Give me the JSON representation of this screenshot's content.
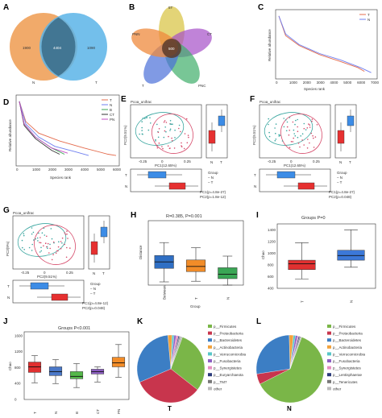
{
  "panels": {
    "A": {
      "label": "A",
      "left_value": "1900",
      "overlap_value": "4404",
      "right_value": "1090",
      "left_name": "N",
      "right_name": "T",
      "colors": [
        "#f0a15a",
        "#5ab4e8"
      ]
    },
    "B": {
      "label": "B",
      "center_value": "500",
      "petals": [
        "5T",
        "CT",
        "PNC",
        "T",
        "PNN"
      ]
    },
    "C": {
      "label": "C",
      "xlabel": "Species rank",
      "ylabel": "Relative abundance",
      "legend": [
        "T",
        "N"
      ]
    },
    "D": {
      "label": "D",
      "xlabel": "Species rank",
      "ylabel": "Relative abundance",
      "legend": [
        "T",
        "N",
        "B",
        "CT",
        "PN"
      ]
    },
    "E": {
      "label": "E",
      "title": "Pcoa_unifrac",
      "xlabel": "PC1(12.65%)",
      "ylabel": "PC2(9.51%)",
      "legend_title": "Group",
      "legend": [
        "N",
        "T"
      ],
      "stat1": "PC1(p=4.8e-27)",
      "stat2": "PC2(p=1.8e-12)",
      "box_labels": [
        "T",
        "N"
      ]
    },
    "F": {
      "label": "F",
      "title": "Pcoa_unifrac",
      "xlabel": "PC1(12.65%)",
      "ylabel": "PC2(9.51%)",
      "legend_title": "Group",
      "legend": [
        "N",
        "T"
      ],
      "stat1": "PC1(p=4.8e-27)",
      "stat2": "PC2(p=0.048)",
      "box_labels": [
        "T",
        "N"
      ]
    },
    "G": {
      "label": "G",
      "title": "Pcoa_unifrac",
      "xlabel": "PC2(9.51%)",
      "ylabel": "PC3(9%)",
      "legend_title": "Group",
      "legend": [
        "N",
        "T"
      ],
      "stat1": "PC1(p=4.8e-12)",
      "stat2": "PC2(p=0.048)",
      "box_labels": [
        "T",
        "N"
      ]
    },
    "H": {
      "label": "H",
      "title": "R=0.385, P=0.001",
      "xlabel": "Group",
      "ylabel": "Distance",
      "groups": [
        "Between",
        "T",
        "N"
      ]
    },
    "I": {
      "label": "I",
      "title": "Groups P=0",
      "ylabel": "Chao",
      "groups": [
        "T",
        "N"
      ]
    },
    "J": {
      "label": "J",
      "title": "Groups P<0.001",
      "ylabel": "Chao",
      "groups": [
        "T",
        "N",
        "B",
        "CT",
        "PN"
      ]
    },
    "K": {
      "label": "K",
      "group": "T",
      "legend": [
        "p__Firmicutes",
        "p__Proteobacteria",
        "p__Bacteroidetes",
        "p__Actinobacteria",
        "p__Verrucomicrobia",
        "p__Fusobacteria",
        "p__Synergistetes",
        "p__Euryarchaeota",
        "p__TM7",
        "other"
      ]
    },
    "L": {
      "label": "L",
      "group": "N",
      "legend": [
        "p__Firmicutes",
        "p__Proteobacteria",
        "p__Bacteroidetes",
        "p__Actinobacteria",
        "p__Verrucomicrobia",
        "p__Fusobacteria",
        "p__Synergistetes",
        "p__Lentisphaerae",
        "p__Tenericutes",
        "other"
      ]
    }
  },
  "chart_data": [
    {
      "type": "bar",
      "panel": "A",
      "categories": [
        "N only",
        "Shared",
        "T only"
      ],
      "values": [
        1900,
        4404,
        1090
      ]
    },
    {
      "type": "line",
      "panel": "C",
      "xlabel": "Species rank",
      "ylabel": "Relative abundance",
      "xlim": [
        0,
        7000
      ],
      "x_ticks": [
        0,
        1000,
        2000,
        3000,
        4000,
        5000,
        6000,
        7000
      ],
      "y_scale": "log",
      "series": [
        {
          "name": "T",
          "color": "#e46c4e",
          "x": [
            0,
            500,
            1500,
            3000,
            4500,
            5800,
            6300
          ],
          "y": [
            0.1,
            0.003,
            0.0005,
            0.0001,
            3e-05,
            1e-05,
            5e-06
          ]
        },
        {
          "name": "N",
          "color": "#6f7ff0",
          "x": [
            0,
            500,
            1500,
            3000,
            4500,
            6000,
            6800
          ],
          "y": [
            0.1,
            0.004,
            0.0006,
            0.00012,
            4e-05,
            1e-05,
            4e-06
          ]
        }
      ]
    },
    {
      "type": "line",
      "panel": "D",
      "xlabel": "Species rank",
      "ylabel": "Relative abundance",
      "xlim": [
        0,
        6000
      ],
      "x_ticks": [
        0,
        1000,
        2000,
        3000,
        4000,
        5000,
        6000
      ],
      "y_scale": "log",
      "series": [
        {
          "name": "T",
          "color": "#e46c4e",
          "x": [
            0,
            400,
            1200,
            2500,
            4000,
            5500,
            6000
          ],
          "y": [
            0.1,
            0.003,
            0.0004,
            0.0001,
            3e-05,
            1e-05,
            8e-06
          ]
        },
        {
          "name": "N",
          "color": "#6f7ff0",
          "x": [
            0,
            400,
            1200,
            2200,
            3500,
            4300
          ],
          "y": [
            0.1,
            0.002,
            0.0002,
            4e-05,
            1.5e-05,
            8e-06
          ]
        },
        {
          "name": "B",
          "color": "#3aa655",
          "x": [
            0,
            300,
            1000,
            2000,
            2800
          ],
          "y": [
            0.1,
            0.002,
            0.0002,
            3e-05,
            1e-05
          ]
        },
        {
          "name": "CT",
          "color": "#333333",
          "x": [
            0,
            300,
            1000,
            2000,
            2500
          ],
          "y": [
            0.1,
            0.0015,
            0.00015,
            2e-05,
            1e-05
          ]
        },
        {
          "name": "PN",
          "color": "#c44ec4",
          "x": [
            0,
            300,
            1000,
            2000,
            3000
          ],
          "y": [
            0.1,
            0.002,
            0.0002,
            3e-05,
            1.2e-05
          ]
        }
      ]
    },
    {
      "type": "scatter",
      "panel": "E",
      "xlabel": "PC1(12.65%)",
      "ylabel": "PC2(9.51%)",
      "xlim": [
        -0.3,
        0.4
      ],
      "ylim": [
        -0.3,
        0.3
      ],
      "x_ticks": [
        -0.25,
        0,
        0.25
      ],
      "series": [
        {
          "name": "N",
          "color": "#d64a6a"
        },
        {
          "name": "T",
          "color": "#3aa6a0"
        }
      ]
    },
    {
      "type": "scatter",
      "panel": "F",
      "xlabel": "PC1(12.65%)",
      "ylabel": "PC2(9.51%)",
      "xlim": [
        -0.3,
        0.4
      ],
      "ylim": [
        -0.3,
        0.3
      ],
      "x_ticks": [
        -0.25,
        0,
        0.25
      ],
      "series": [
        {
          "name": "N",
          "color": "#d64a6a"
        },
        {
          "name": "T",
          "color": "#3aa6a0"
        }
      ]
    },
    {
      "type": "scatter",
      "panel": "G",
      "xlabel": "PC2(9.51%)",
      "ylabel": "PC3(9%)",
      "xlim": [
        -0.3,
        0.4
      ],
      "ylim": [
        -0.3,
        0.3
      ],
      "x_ticks": [
        -0.25,
        0,
        0.25
      ],
      "series": [
        {
          "name": "N",
          "color": "#d64a6a"
        },
        {
          "name": "T",
          "color": "#3aa6a0"
        }
      ]
    },
    {
      "type": "box",
      "panel": "H",
      "categories": [
        "Between",
        "T",
        "N"
      ],
      "ylim": [
        0,
        1
      ],
      "boxes": [
        {
          "min": 0.05,
          "q1": 0.26,
          "median": 0.36,
          "q3": 0.46,
          "max": 0.66,
          "color": "#2f6fc4"
        },
        {
          "min": 0.06,
          "q1": 0.21,
          "median": 0.29,
          "q3": 0.39,
          "max": 0.58,
          "color": "#f28c28"
        },
        {
          "min": 0.0,
          "q1": 0.1,
          "median": 0.17,
          "q3": 0.27,
          "max": 0.45,
          "color": "#3aa655"
        }
      ]
    },
    {
      "type": "box",
      "panel": "I",
      "categories": [
        "T",
        "N"
      ],
      "ylim": [
        400,
        1500
      ],
      "y_ticks": [
        400,
        600,
        800,
        1000,
        1200,
        1400
      ],
      "boxes": [
        {
          "min": 560,
          "q1": 720,
          "median": 820,
          "q3": 880,
          "max": 1180,
          "color": "#e03030"
        },
        {
          "min": 760,
          "q1": 880,
          "median": 960,
          "q3": 1050,
          "max": 1400,
          "color": "#3c78d8"
        }
      ]
    },
    {
      "type": "box",
      "panel": "J",
      "categories": [
        "T",
        "N",
        "B",
        "CT",
        "PN"
      ],
      "ylim": [
        0,
        1700
      ],
      "y_ticks": [
        0,
        400,
        800,
        1200,
        1600
      ],
      "boxes": [
        {
          "min": 420,
          "q1": 680,
          "median": 820,
          "q3": 940,
          "max": 1100,
          "color": "#e03030"
        },
        {
          "min": 400,
          "q1": 600,
          "median": 700,
          "q3": 820,
          "max": 1000,
          "color": "#4a78c8"
        },
        {
          "min": 300,
          "q1": 520,
          "median": 580,
          "q3": 700,
          "max": 900,
          "color": "#55b84a"
        },
        {
          "min": 440,
          "q1": 640,
          "median": 700,
          "q3": 760,
          "max": 820,
          "color": "#8e5fc4"
        },
        {
          "min": 560,
          "q1": 820,
          "median": 920,
          "q3": 1060,
          "max": 1380,
          "color": "#f28c28"
        }
      ]
    },
    {
      "type": "pie",
      "panel": "K",
      "categories": [
        "p__Firmicutes",
        "p__Proteobacteria",
        "p__Bacteroidetes",
        "p__Actinobacteria",
        "p__Verrucomicrobia",
        "p__Fusobacteria",
        "p__Synergistetes",
        "p__Euryarchaeota",
        "p__TM7",
        "other"
      ],
      "values": [
        30,
        33,
        30,
        2,
        1,
        1,
        1,
        0.5,
        0.5,
        1
      ],
      "colors": [
        "#7ab648",
        "#c8354d",
        "#3c7ec4",
        "#f2a23c",
        "#58c6c8",
        "#8e5fc4",
        "#e58fc0",
        "#2b3a7a",
        "#777777",
        "#bbbbbb"
      ]
    },
    {
      "type": "pie",
      "panel": "L",
      "categories": [
        "p__Firmicutes",
        "p__Proteobacteria",
        "p__Bacteroidetes",
        "p__Actinobacteria",
        "p__Verrucomicrobia",
        "p__Fusobacteria",
        "p__Synergistetes",
        "p__Lentisphaerae",
        "p__Tenericutes",
        "other"
      ],
      "values": [
        62,
        5,
        27,
        2,
        1,
        1,
        0.5,
        0.5,
        0.5,
        0.5
      ],
      "colors": [
        "#7ab648",
        "#c8354d",
        "#3c7ec4",
        "#f2a23c",
        "#58c6c8",
        "#8e5fc4",
        "#e58fc0",
        "#2b3a7a",
        "#777777",
        "#bbbbbb"
      ]
    }
  ]
}
